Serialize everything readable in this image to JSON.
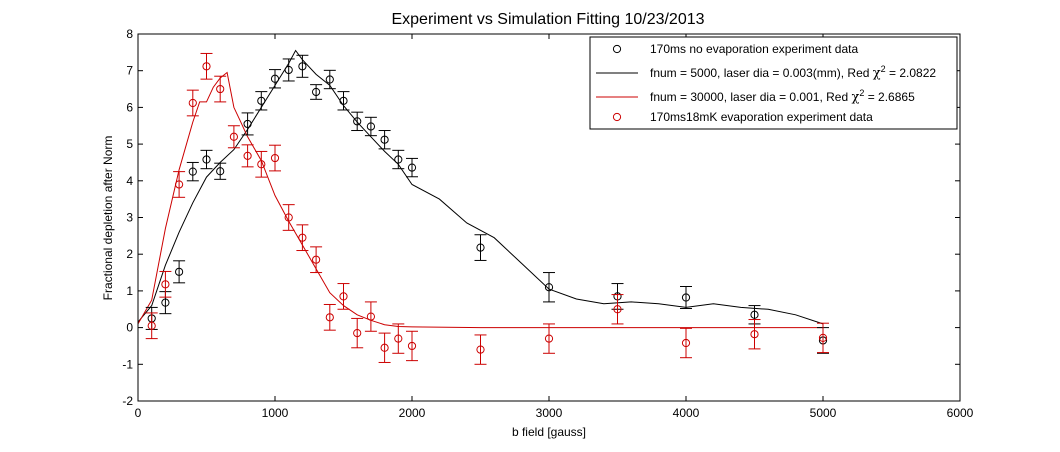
{
  "chart_data": {
    "type": "scatter",
    "title": "Experiment vs Simulation Fitting  10/23/2013",
    "xlabel": "b field [gauss]",
    "ylabel": "Fractional depletion after Norm",
    "xlim": [
      0,
      6000
    ],
    "ylim": [
      -2,
      8
    ],
    "xticks": [
      0,
      1000,
      2000,
      3000,
      4000,
      5000,
      6000
    ],
    "yticks": [
      -2,
      -1,
      0,
      1,
      2,
      3,
      4,
      5,
      6,
      7,
      8
    ],
    "grid": false,
    "legend_position": "top-right",
    "colors": {
      "black": "#000000",
      "red": "#cc0000"
    },
    "legend": [
      {
        "key": "exp_black",
        "kind": "marker",
        "color": "#000000",
        "parts": [
          {
            "text": "170ms no evaporation experiment data"
          }
        ]
      },
      {
        "key": "sim_black",
        "kind": "line",
        "color": "#000000",
        "parts": [
          {
            "text": "fnum = 5000,  laser dia = 0.003(mm), Red "
          },
          {
            "text": "χ",
            "style": "greek"
          },
          {
            "text": "2",
            "style": "sup"
          },
          {
            "text": " = 2.0822"
          }
        ]
      },
      {
        "key": "sim_red",
        "kind": "line",
        "color": "#cc0000",
        "parts": [
          {
            "text": "fnum = 30000,  laser dia = 0.001, Red "
          },
          {
            "text": "χ",
            "style": "greek"
          },
          {
            "text": "2",
            "style": "sup"
          },
          {
            "text": " = 2.6865"
          }
        ]
      },
      {
        "key": "exp_red",
        "kind": "marker",
        "color": "#cc0000",
        "parts": [
          {
            "text": "170ms18mK evaporation experiment data"
          }
        ]
      }
    ],
    "series": [
      {
        "key": "exp_black",
        "kind": "errorbar",
        "color": "#000000",
        "x": [
          100,
          200,
          300,
          400,
          500,
          600,
          800,
          900,
          1000,
          1100,
          1200,
          1300,
          1400,
          1500,
          1600,
          1700,
          1800,
          1900,
          2000,
          2500,
          3000,
          3500,
          4000,
          4500,
          5000
        ],
        "y": [
          0.25,
          0.68,
          1.52,
          4.25,
          4.58,
          4.26,
          5.55,
          6.18,
          6.78,
          7.02,
          7.12,
          6.42,
          6.76,
          6.18,
          5.62,
          5.48,
          5.12,
          4.58,
          4.36,
          2.18,
          1.1,
          0.85,
          0.82,
          0.35,
          -0.35
        ],
        "err": [
          0.3,
          0.3,
          0.3,
          0.25,
          0.25,
          0.22,
          0.3,
          0.25,
          0.25,
          0.3,
          0.3,
          0.2,
          0.25,
          0.25,
          0.25,
          0.25,
          0.25,
          0.25,
          0.25,
          0.35,
          0.4,
          0.35,
          0.3,
          0.25,
          0.35
        ]
      },
      {
        "key": "exp_red",
        "kind": "errorbar",
        "color": "#cc0000",
        "x": [
          100,
          200,
          300,
          400,
          500,
          600,
          700,
          800,
          900,
          1000,
          1100,
          1200,
          1300,
          1400,
          1500,
          1600,
          1700,
          1800,
          1900,
          2000,
          2500,
          3000,
          3500,
          4000,
          4500,
          5000
        ],
        "y": [
          0.05,
          1.18,
          3.9,
          6.12,
          7.12,
          6.5,
          5.2,
          4.68,
          4.45,
          4.62,
          3.0,
          2.45,
          1.85,
          0.28,
          0.85,
          -0.15,
          0.3,
          -0.55,
          -0.3,
          -0.5,
          -0.6,
          -0.3,
          0.5,
          -0.42,
          -0.18,
          -0.28
        ],
        "err": [
          0.35,
          0.35,
          0.35,
          0.35,
          0.35,
          0.35,
          0.3,
          0.3,
          0.35,
          0.35,
          0.35,
          0.35,
          0.35,
          0.35,
          0.35,
          0.4,
          0.4,
          0.4,
          0.4,
          0.4,
          0.4,
          0.4,
          0.4,
          0.4,
          0.4,
          0.4
        ]
      },
      {
        "key": "sim_black",
        "kind": "line",
        "color": "#000000",
        "x": [
          0,
          100,
          200,
          300,
          400,
          500,
          600,
          700,
          800,
          900,
          1000,
          1100,
          1150,
          1200,
          1300,
          1400,
          1500,
          1600,
          1700,
          1800,
          1900,
          2000,
          2200,
          2400,
          2600,
          2800,
          3000,
          3200,
          3400,
          3600,
          3800,
          4000,
          4200,
          4400,
          4600,
          4800,
          5000
        ],
        "y": [
          0.15,
          0.6,
          1.7,
          2.6,
          3.4,
          4.1,
          4.5,
          4.85,
          5.4,
          6.0,
          6.6,
          7.2,
          7.55,
          7.3,
          6.9,
          6.6,
          6.05,
          5.6,
          5.2,
          4.8,
          4.45,
          3.9,
          3.5,
          2.85,
          2.45,
          1.75,
          1.05,
          0.78,
          0.65,
          0.7,
          0.65,
          0.55,
          0.65,
          0.55,
          0.5,
          0.35,
          0.1
        ]
      },
      {
        "key": "sim_red",
        "kind": "line",
        "color": "#cc0000",
        "x": [
          0,
          100,
          200,
          300,
          400,
          450,
          500,
          550,
          600,
          650,
          700,
          750,
          800,
          900,
          1000,
          1100,
          1200,
          1300,
          1400,
          1500,
          1600,
          1700,
          1800,
          1900,
          2000,
          2500,
          3000,
          3500,
          4000,
          4500,
          5000
        ],
        "y": [
          0.1,
          0.75,
          2.7,
          4.3,
          5.6,
          6.15,
          6.15,
          6.55,
          6.8,
          6.95,
          6.0,
          5.6,
          5.2,
          4.55,
          3.6,
          2.9,
          2.25,
          1.6,
          0.95,
          0.6,
          0.35,
          0.2,
          0.08,
          0.03,
          0.02,
          0.0,
          0.0,
          0.0,
          0.0,
          0.0,
          0.0
        ]
      }
    ]
  }
}
